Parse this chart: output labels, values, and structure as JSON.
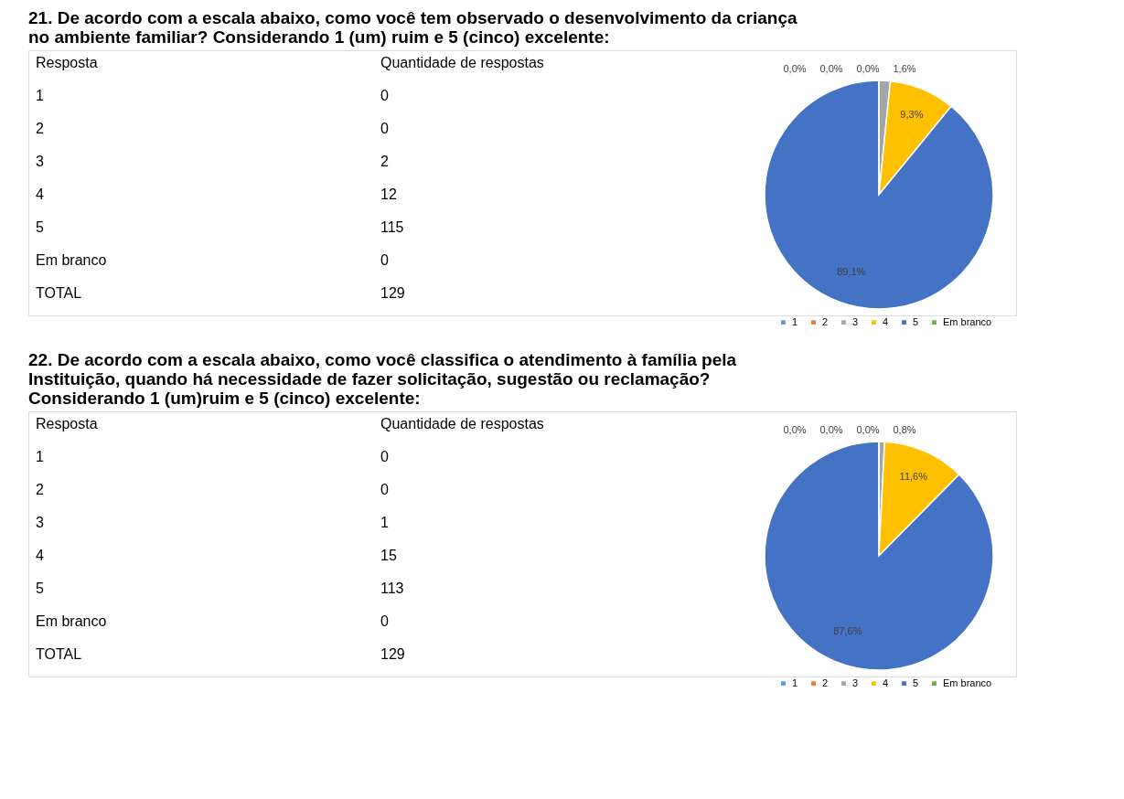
{
  "chart_data": [
    {
      "type": "pie",
      "title": "21. De acordo com a escala abaixo, como você tem observado o desenvolvimento da criança no ambiente familiar? Considerando 1 (um) ruim e 5 (cinco) excelente:",
      "categories": [
        "1",
        "2",
        "3",
        "4",
        "5",
        "Em branco"
      ],
      "values": [
        0,
        0,
        1.6,
        9.3,
        89.1,
        0
      ],
      "colors": [
        "#5b9bd5",
        "#ed7d31",
        "#a5a5a5",
        "#ffc000",
        "#4472c4",
        "#70ad47"
      ],
      "value_labels": [
        "0,0%",
        "0,0%",
        "1,6%",
        "9,3%",
        "89,1%",
        "0,0%"
      ],
      "annotations": [
        "Resposta",
        "Quantidade de respostas",
        "0",
        "0",
        "2",
        "12",
        "115",
        "0",
        "TOTAL",
        "129"
      ],
      "legend": "bottom right"
    },
    {
      "type": "pie",
      "title": "22. De acordo com a escala abaixo, como você classifica o atendimento à família pela Instituição, quando há necessidade de fazer solicitação, sugestão ou reclamação? Considerando 1 (um)ruim e 5 (cinco) excelente:",
      "categories": [
        "1",
        "2",
        "3",
        "4",
        "5",
        "Em branco"
      ],
      "values": [
        0,
        0,
        0.8,
        11.6,
        87.6,
        0
      ],
      "colors": [
        "#5b9bd5",
        "#ed7d31",
        "#a5a5a5",
        "#ffc000",
        "#4472c4",
        "#70ad47"
      ],
      "value_labels": [
        "0,0%",
        "0,0%",
        "0,8%",
        "11,6%",
        "87,6%",
        "0,0%"
      ],
      "annotations": [
        "Resposta",
        "Quantidade de respostas",
        "0",
        "0",
        "1",
        "15",
        "113",
        "0",
        "TOTAL",
        "129"
      ],
      "legend": "bottom right"
    }
  ]
}
